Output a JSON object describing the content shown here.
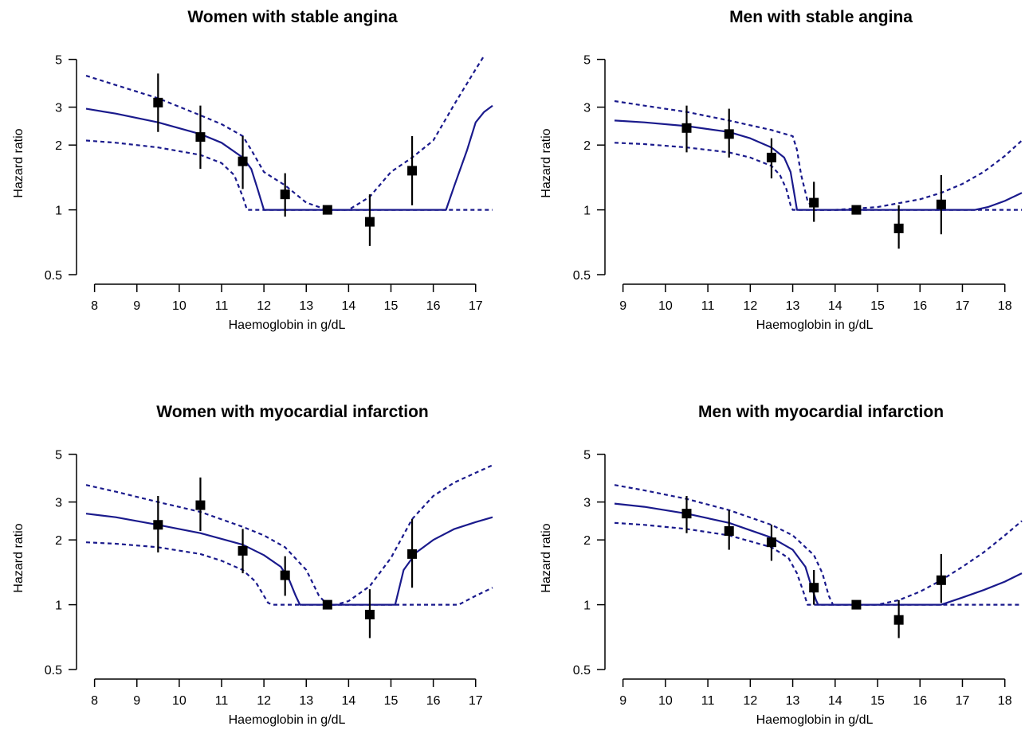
{
  "chart_data": [
    {
      "type": "line",
      "title": "Women with stable angina",
      "xlabel": "Haemoglobin in g/dL",
      "ylabel": "Hazard ratio",
      "log_y": true,
      "xlim": [
        7.8,
        17.4
      ],
      "ylim": [
        0.5,
        5.2
      ],
      "x_ticks": [
        8,
        9,
        10,
        11,
        12,
        13,
        14,
        15,
        16,
        17
      ],
      "x_tick_labels": [
        "8",
        "9",
        "10",
        "11",
        "12",
        "13",
        "14",
        "15",
        "16",
        "17"
      ],
      "y_ticks": [
        0.5,
        1,
        2,
        3,
        5
      ],
      "y_tick_labels": [
        "0.5",
        "1",
        "2",
        "3",
        "5"
      ],
      "grid": false,
      "colors": {
        "curve": "#1a1a8c",
        "points": "#000000"
      },
      "points": [
        {
          "x": 9.5,
          "y": 3.15,
          "lo": 2.3,
          "hi": 4.3
        },
        {
          "x": 10.5,
          "y": 2.18,
          "lo": 1.55,
          "hi": 3.05
        },
        {
          "x": 11.5,
          "y": 1.68,
          "lo": 1.25,
          "hi": 2.2
        },
        {
          "x": 12.5,
          "y": 1.18,
          "lo": 0.93,
          "hi": 1.48
        },
        {
          "x": 13.5,
          "y": 1.0,
          "lo": 1.0,
          "hi": 1.0
        },
        {
          "x": 14.5,
          "y": 0.88,
          "lo": 0.68,
          "hi": 1.18
        },
        {
          "x": 15.5,
          "y": 1.52,
          "lo": 1.05,
          "hi": 2.2
        }
      ],
      "series": [
        {
          "style": "solid",
          "x": [
            7.8,
            8.5,
            9.5,
            10.5,
            11.0,
            11.5,
            11.7,
            11.85,
            12.0,
            16.3,
            16.5,
            16.8,
            17.0,
            17.2,
            17.4
          ],
          "y": [
            2.95,
            2.8,
            2.55,
            2.25,
            2.05,
            1.75,
            1.55,
            1.25,
            1.0,
            1.0,
            1.3,
            1.9,
            2.55,
            2.85,
            3.05
          ]
        },
        {
          "style": "dotted",
          "x": [
            7.8,
            8.5,
            9.5,
            10.5,
            11.0,
            11.5,
            11.7,
            12.0,
            12.5,
            13.0,
            13.5,
            14.0,
            14.5,
            15.0,
            15.5,
            16.0,
            16.5,
            17.0,
            17.2
          ],
          "y": [
            4.2,
            3.8,
            3.3,
            2.75,
            2.5,
            2.2,
            1.9,
            1.5,
            1.3,
            1.08,
            1.0,
            1.0,
            1.15,
            1.5,
            1.75,
            2.1,
            3.1,
            4.5,
            5.2
          ]
        },
        {
          "style": "dotted",
          "x": [
            7.8,
            8.5,
            9.5,
            10.5,
            11.0,
            11.3,
            11.5,
            11.6,
            11.7,
            17.4
          ],
          "y": [
            2.1,
            2.05,
            1.95,
            1.8,
            1.65,
            1.45,
            1.15,
            1.0,
            1.0,
            1.0
          ]
        }
      ]
    },
    {
      "type": "line",
      "title": "Men with stable angina",
      "xlabel": "Haemoglobin in g/dL",
      "ylabel": "Hazard ratio",
      "log_y": true,
      "xlim": [
        8.8,
        18.4
      ],
      "ylim": [
        0.5,
        5.2
      ],
      "x_ticks": [
        9,
        10,
        11,
        12,
        13,
        14,
        15,
        16,
        17,
        18
      ],
      "x_tick_labels": [
        "9",
        "10",
        "11",
        "12",
        "13",
        "14",
        "15",
        "16",
        "17",
        "18"
      ],
      "y_ticks": [
        0.5,
        1,
        2,
        3,
        5
      ],
      "y_tick_labels": [
        "0.5",
        "1",
        "2",
        "3",
        "5"
      ],
      "grid": false,
      "colors": {
        "curve": "#1a1a8c",
        "points": "#000000"
      },
      "points": [
        {
          "x": 10.5,
          "y": 2.4,
          "lo": 1.85,
          "hi": 3.05
        },
        {
          "x": 11.5,
          "y": 2.25,
          "lo": 1.75,
          "hi": 2.95
        },
        {
          "x": 12.5,
          "y": 1.75,
          "lo": 1.4,
          "hi": 2.15
        },
        {
          "x": 13.5,
          "y": 1.08,
          "lo": 0.88,
          "hi": 1.35
        },
        {
          "x": 14.5,
          "y": 1.0,
          "lo": 1.0,
          "hi": 1.0
        },
        {
          "x": 15.5,
          "y": 0.82,
          "lo": 0.66,
          "hi": 1.05
        },
        {
          "x": 16.5,
          "y": 1.06,
          "lo": 0.77,
          "hi": 1.45
        }
      ],
      "series": [
        {
          "style": "solid",
          "x": [
            8.8,
            9.5,
            10.5,
            11.5,
            12.0,
            12.5,
            12.8,
            12.95,
            13.05,
            13.1,
            17.3,
            17.6,
            18.0,
            18.4
          ],
          "y": [
            2.6,
            2.55,
            2.45,
            2.3,
            2.15,
            1.95,
            1.75,
            1.5,
            1.15,
            1.0,
            1.0,
            1.03,
            1.1,
            1.2
          ]
        },
        {
          "style": "dotted",
          "x": [
            8.8,
            9.5,
            10.5,
            11.5,
            12.5,
            13.0,
            13.1,
            13.2,
            13.35,
            13.5,
            14.0,
            15.0,
            16.0,
            16.5,
            17.0,
            17.5,
            18.0,
            18.4
          ],
          "y": [
            3.2,
            3.05,
            2.85,
            2.6,
            2.35,
            2.2,
            1.9,
            1.45,
            1.1,
            1.0,
            1.0,
            1.03,
            1.12,
            1.2,
            1.32,
            1.5,
            1.78,
            2.1
          ]
        },
        {
          "style": "dotted",
          "x": [
            8.8,
            9.5,
            10.5,
            11.5,
            12.0,
            12.5,
            12.7,
            12.85,
            12.95,
            13.0,
            18.4
          ],
          "y": [
            2.05,
            2.02,
            1.95,
            1.85,
            1.75,
            1.6,
            1.45,
            1.25,
            1.05,
            1.0,
            1.0
          ]
        }
      ]
    },
    {
      "type": "line",
      "title": "Women with myocardial infarction",
      "xlabel": "Haemoglobin in g/dL",
      "ylabel": "Hazard ratio",
      "log_y": true,
      "xlim": [
        7.8,
        17.4
      ],
      "ylim": [
        0.5,
        5.2
      ],
      "x_ticks": [
        8,
        9,
        10,
        11,
        12,
        13,
        14,
        15,
        16,
        17
      ],
      "x_tick_labels": [
        "8",
        "9",
        "10",
        "11",
        "12",
        "13",
        "14",
        "15",
        "16",
        "17"
      ],
      "y_ticks": [
        0.5,
        1,
        2,
        3,
        5
      ],
      "y_tick_labels": [
        "0.5",
        "1",
        "2",
        "3",
        "5"
      ],
      "grid": false,
      "colors": {
        "curve": "#1a1a8c",
        "points": "#000000"
      },
      "points": [
        {
          "x": 9.5,
          "y": 2.35,
          "lo": 1.75,
          "hi": 3.2
        },
        {
          "x": 10.5,
          "y": 2.9,
          "lo": 2.2,
          "hi": 3.9
        },
        {
          "x": 11.5,
          "y": 1.78,
          "lo": 1.4,
          "hi": 2.25
        },
        {
          "x": 12.5,
          "y": 1.37,
          "lo": 1.1,
          "hi": 1.68
        },
        {
          "x": 13.5,
          "y": 1.0,
          "lo": 1.0,
          "hi": 1.0
        },
        {
          "x": 14.5,
          "y": 0.9,
          "lo": 0.7,
          "hi": 1.18
        },
        {
          "x": 15.5,
          "y": 1.72,
          "lo": 1.2,
          "hi": 2.5
        }
      ],
      "series": [
        {
          "style": "solid",
          "x": [
            7.8,
            8.5,
            9.5,
            10.5,
            11.5,
            12.0,
            12.4,
            12.6,
            12.75,
            12.85,
            15.1,
            15.3,
            15.6,
            16.0,
            16.5,
            17.0,
            17.4
          ],
          "y": [
            2.65,
            2.55,
            2.35,
            2.15,
            1.9,
            1.7,
            1.5,
            1.3,
            1.1,
            1.0,
            1.0,
            1.45,
            1.75,
            2.0,
            2.25,
            2.42,
            2.55
          ]
        },
        {
          "style": "dotted",
          "x": [
            7.8,
            8.5,
            9.5,
            10.5,
            11.5,
            12.0,
            12.5,
            13.0,
            13.3,
            13.5,
            13.7,
            14.0,
            14.5,
            15.0,
            15.5,
            16.0,
            16.5,
            17.0,
            17.4
          ],
          "y": [
            3.6,
            3.35,
            3.0,
            2.7,
            2.3,
            2.1,
            1.85,
            1.45,
            1.1,
            1.0,
            1.0,
            1.04,
            1.22,
            1.65,
            2.5,
            3.2,
            3.7,
            4.1,
            4.45
          ]
        },
        {
          "style": "dotted",
          "x": [
            7.8,
            8.5,
            9.5,
            10.5,
            11.0,
            11.5,
            11.8,
            12.0,
            12.1,
            12.2,
            16.6,
            17.0,
            17.4
          ],
          "y": [
            1.95,
            1.92,
            1.85,
            1.72,
            1.6,
            1.45,
            1.28,
            1.1,
            1.02,
            1.0,
            1.0,
            1.1,
            1.2
          ]
        }
      ]
    },
    {
      "type": "line",
      "title": "Men with myocardial infarction",
      "xlabel": "Haemoglobin in g/dL",
      "ylabel": "Hazard ratio",
      "log_y": true,
      "xlim": [
        8.8,
        18.4
      ],
      "ylim": [
        0.5,
        5.2
      ],
      "x_ticks": [
        9,
        10,
        11,
        12,
        13,
        14,
        15,
        16,
        17,
        18
      ],
      "x_tick_labels": [
        "9",
        "10",
        "11",
        "12",
        "13",
        "14",
        "15",
        "16",
        "17",
        "18"
      ],
      "y_ticks": [
        0.5,
        1,
        2,
        3,
        5
      ],
      "y_tick_labels": [
        "0.5",
        "1",
        "2",
        "3",
        "5"
      ],
      "grid": false,
      "colors": {
        "curve": "#1a1a8c",
        "points": "#000000"
      },
      "points": [
        {
          "x": 10.5,
          "y": 2.65,
          "lo": 2.15,
          "hi": 3.2
        },
        {
          "x": 11.5,
          "y": 2.2,
          "lo": 1.8,
          "hi": 2.75
        },
        {
          "x": 12.5,
          "y": 1.95,
          "lo": 1.6,
          "hi": 2.35
        },
        {
          "x": 13.5,
          "y": 1.2,
          "lo": 1.0,
          "hi": 1.45
        },
        {
          "x": 14.5,
          "y": 1.0,
          "lo": 1.0,
          "hi": 1.0
        },
        {
          "x": 15.5,
          "y": 0.85,
          "lo": 0.7,
          "hi": 1.05
        },
        {
          "x": 16.5,
          "y": 1.3,
          "lo": 1.02,
          "hi": 1.72
        }
      ],
      "series": [
        {
          "style": "solid",
          "x": [
            8.8,
            9.5,
            10.5,
            11.5,
            12.5,
            13.0,
            13.3,
            13.45,
            13.55,
            13.6,
            16.5,
            17.0,
            17.5,
            18.0,
            18.4
          ],
          "y": [
            2.95,
            2.85,
            2.65,
            2.4,
            2.05,
            1.8,
            1.5,
            1.2,
            1.05,
            1.0,
            1.0,
            1.08,
            1.17,
            1.28,
            1.4
          ]
        },
        {
          "style": "dotted",
          "x": [
            8.8,
            9.5,
            10.5,
            11.5,
            12.5,
            13.0,
            13.5,
            13.7,
            13.85,
            13.95,
            15.0,
            15.5,
            16.0,
            16.5,
            17.0,
            17.5,
            18.0,
            18.4
          ],
          "y": [
            3.6,
            3.4,
            3.1,
            2.75,
            2.35,
            2.1,
            1.7,
            1.4,
            1.1,
            1.0,
            1.0,
            1.05,
            1.15,
            1.3,
            1.5,
            1.75,
            2.1,
            2.45
          ]
        },
        {
          "style": "dotted",
          "x": [
            8.8,
            9.5,
            10.5,
            11.5,
            12.5,
            12.9,
            13.1,
            13.25,
            13.35,
            18.4
          ],
          "y": [
            2.4,
            2.35,
            2.25,
            2.1,
            1.85,
            1.65,
            1.4,
            1.15,
            1.0,
            1.0
          ]
        }
      ]
    }
  ]
}
